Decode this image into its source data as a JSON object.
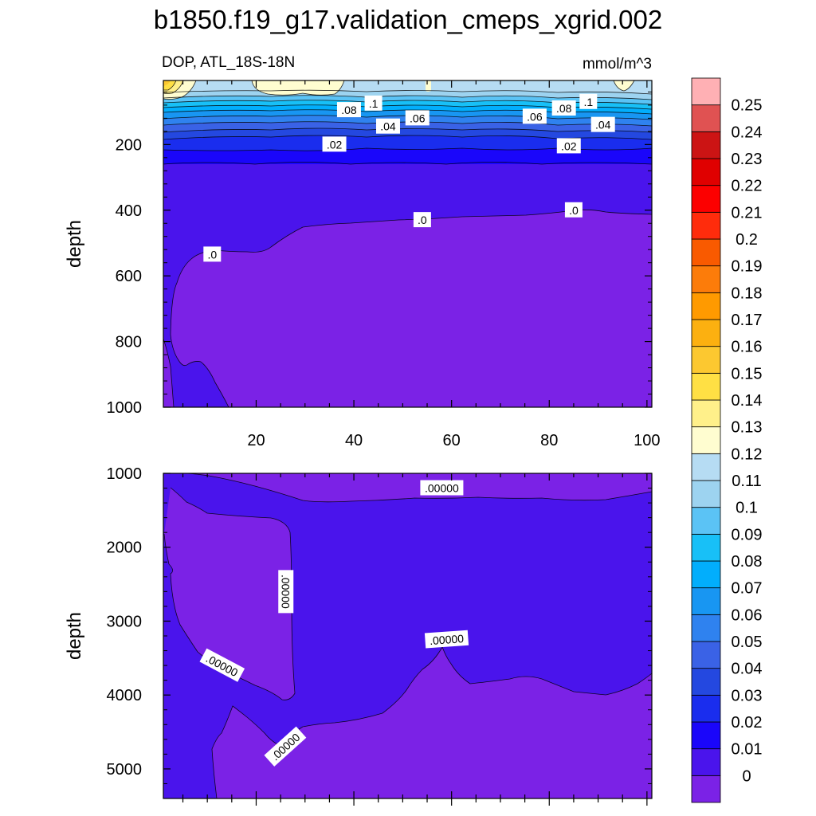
{
  "chart_data": {
    "type": "contour",
    "title": "b1850.f19_g17.validation_cmeps_xgrid.002",
    "subtitle_left": "DOP, ATL_18S-18N",
    "subtitle_right": "mmol/m^3",
    "panels": [
      {
        "name": "upper",
        "xlabel": "",
        "ylabel": "depth",
        "xlim": [
          1,
          101
        ],
        "ylim": [
          1000,
          5
        ],
        "x_ticks": [
          "20",
          "40",
          "60",
          "80",
          "100"
        ],
        "x_tick_values": [
          20,
          40,
          60,
          80,
          100
        ],
        "y_ticks": [
          "200",
          "400",
          "600",
          "800",
          "1000"
        ],
        "y_tick_values": [
          200,
          400,
          600,
          800,
          1000
        ],
        "contour_labels": [
          {
            "text": ".08",
            "x": 39,
            "y": 95
          },
          {
            "text": ".1",
            "x": 44,
            "y": 75
          },
          {
            "text": ".06",
            "x": 53,
            "y": 120
          },
          {
            "text": ".04",
            "x": 47,
            "y": 145
          },
          {
            "text": ".02",
            "x": 36,
            "y": 200
          },
          {
            "text": ".0",
            "x": 54,
            "y": 430
          },
          {
            "text": ".0",
            "x": 11,
            "y": 535
          },
          {
            "text": ".06",
            "x": 77,
            "y": 115
          },
          {
            "text": ".08",
            "x": 83,
            "y": 90
          },
          {
            "text": ".1",
            "x": 88,
            "y": 70
          },
          {
            "text": ".04",
            "x": 91,
            "y": 140
          },
          {
            "text": ".02",
            "x": 84,
            "y": 205
          },
          {
            "text": ".0",
            "x": 85,
            "y": 400
          }
        ]
      },
      {
        "name": "lower",
        "xlabel": "",
        "ylabel": "depth",
        "xlim": [
          1,
          101
        ],
        "ylim": [
          5400,
          1000
        ],
        "y_ticks": [
          "1000",
          "2000",
          "3000",
          "4000",
          "5000"
        ],
        "y_tick_values": [
          1000,
          2000,
          3000,
          4000,
          5000
        ],
        "contour_labels": [
          {
            "text": ".00000",
            "x": 58,
            "y": 1200,
            "angle": 0
          },
          {
            "text": ".00000",
            "x": 26,
            "y": 2600,
            "angle": 90
          },
          {
            "text": ".00000",
            "x": 13,
            "y": 3600,
            "angle": 28
          },
          {
            "text": ".00000",
            "x": 59,
            "y": 3250,
            "angle": -4
          },
          {
            "text": ".00000",
            "x": 26,
            "y": 4700,
            "angle": -42
          }
        ]
      }
    ],
    "colorbar": {
      "labels": [
        "0",
        "0.01",
        "0.02",
        "0.03",
        "0.04",
        "0.05",
        "0.06",
        "0.07",
        "0.08",
        "0.09",
        "0.1",
        "0.11",
        "0.12",
        "0.13",
        "0.14",
        "0.15",
        "0.16",
        "0.17",
        "0.18",
        "0.19",
        "0.2",
        "0.21",
        "0.22",
        "0.23",
        "0.24",
        "0.25"
      ],
      "colors": [
        "#7b22e6",
        "#4a14ec",
        "#1a06fa",
        "#1a2dee",
        "#2448e0",
        "#3a62e6",
        "#2f82ef",
        "#1896f2",
        "#02aefc",
        "#18c0f7",
        "#5bc3f5",
        "#9dd3f0",
        "#b6dcf3",
        "#fffdd0",
        "#fff08a",
        "#ffe044",
        "#fcc830",
        "#fcb010",
        "#ff9a00",
        "#fc7c0a",
        "#f95a00",
        "#ff2c0c",
        "#fc0000",
        "#e00000",
        "#cc1414",
        "#e05252",
        "#ffb0b4"
      ]
    }
  }
}
